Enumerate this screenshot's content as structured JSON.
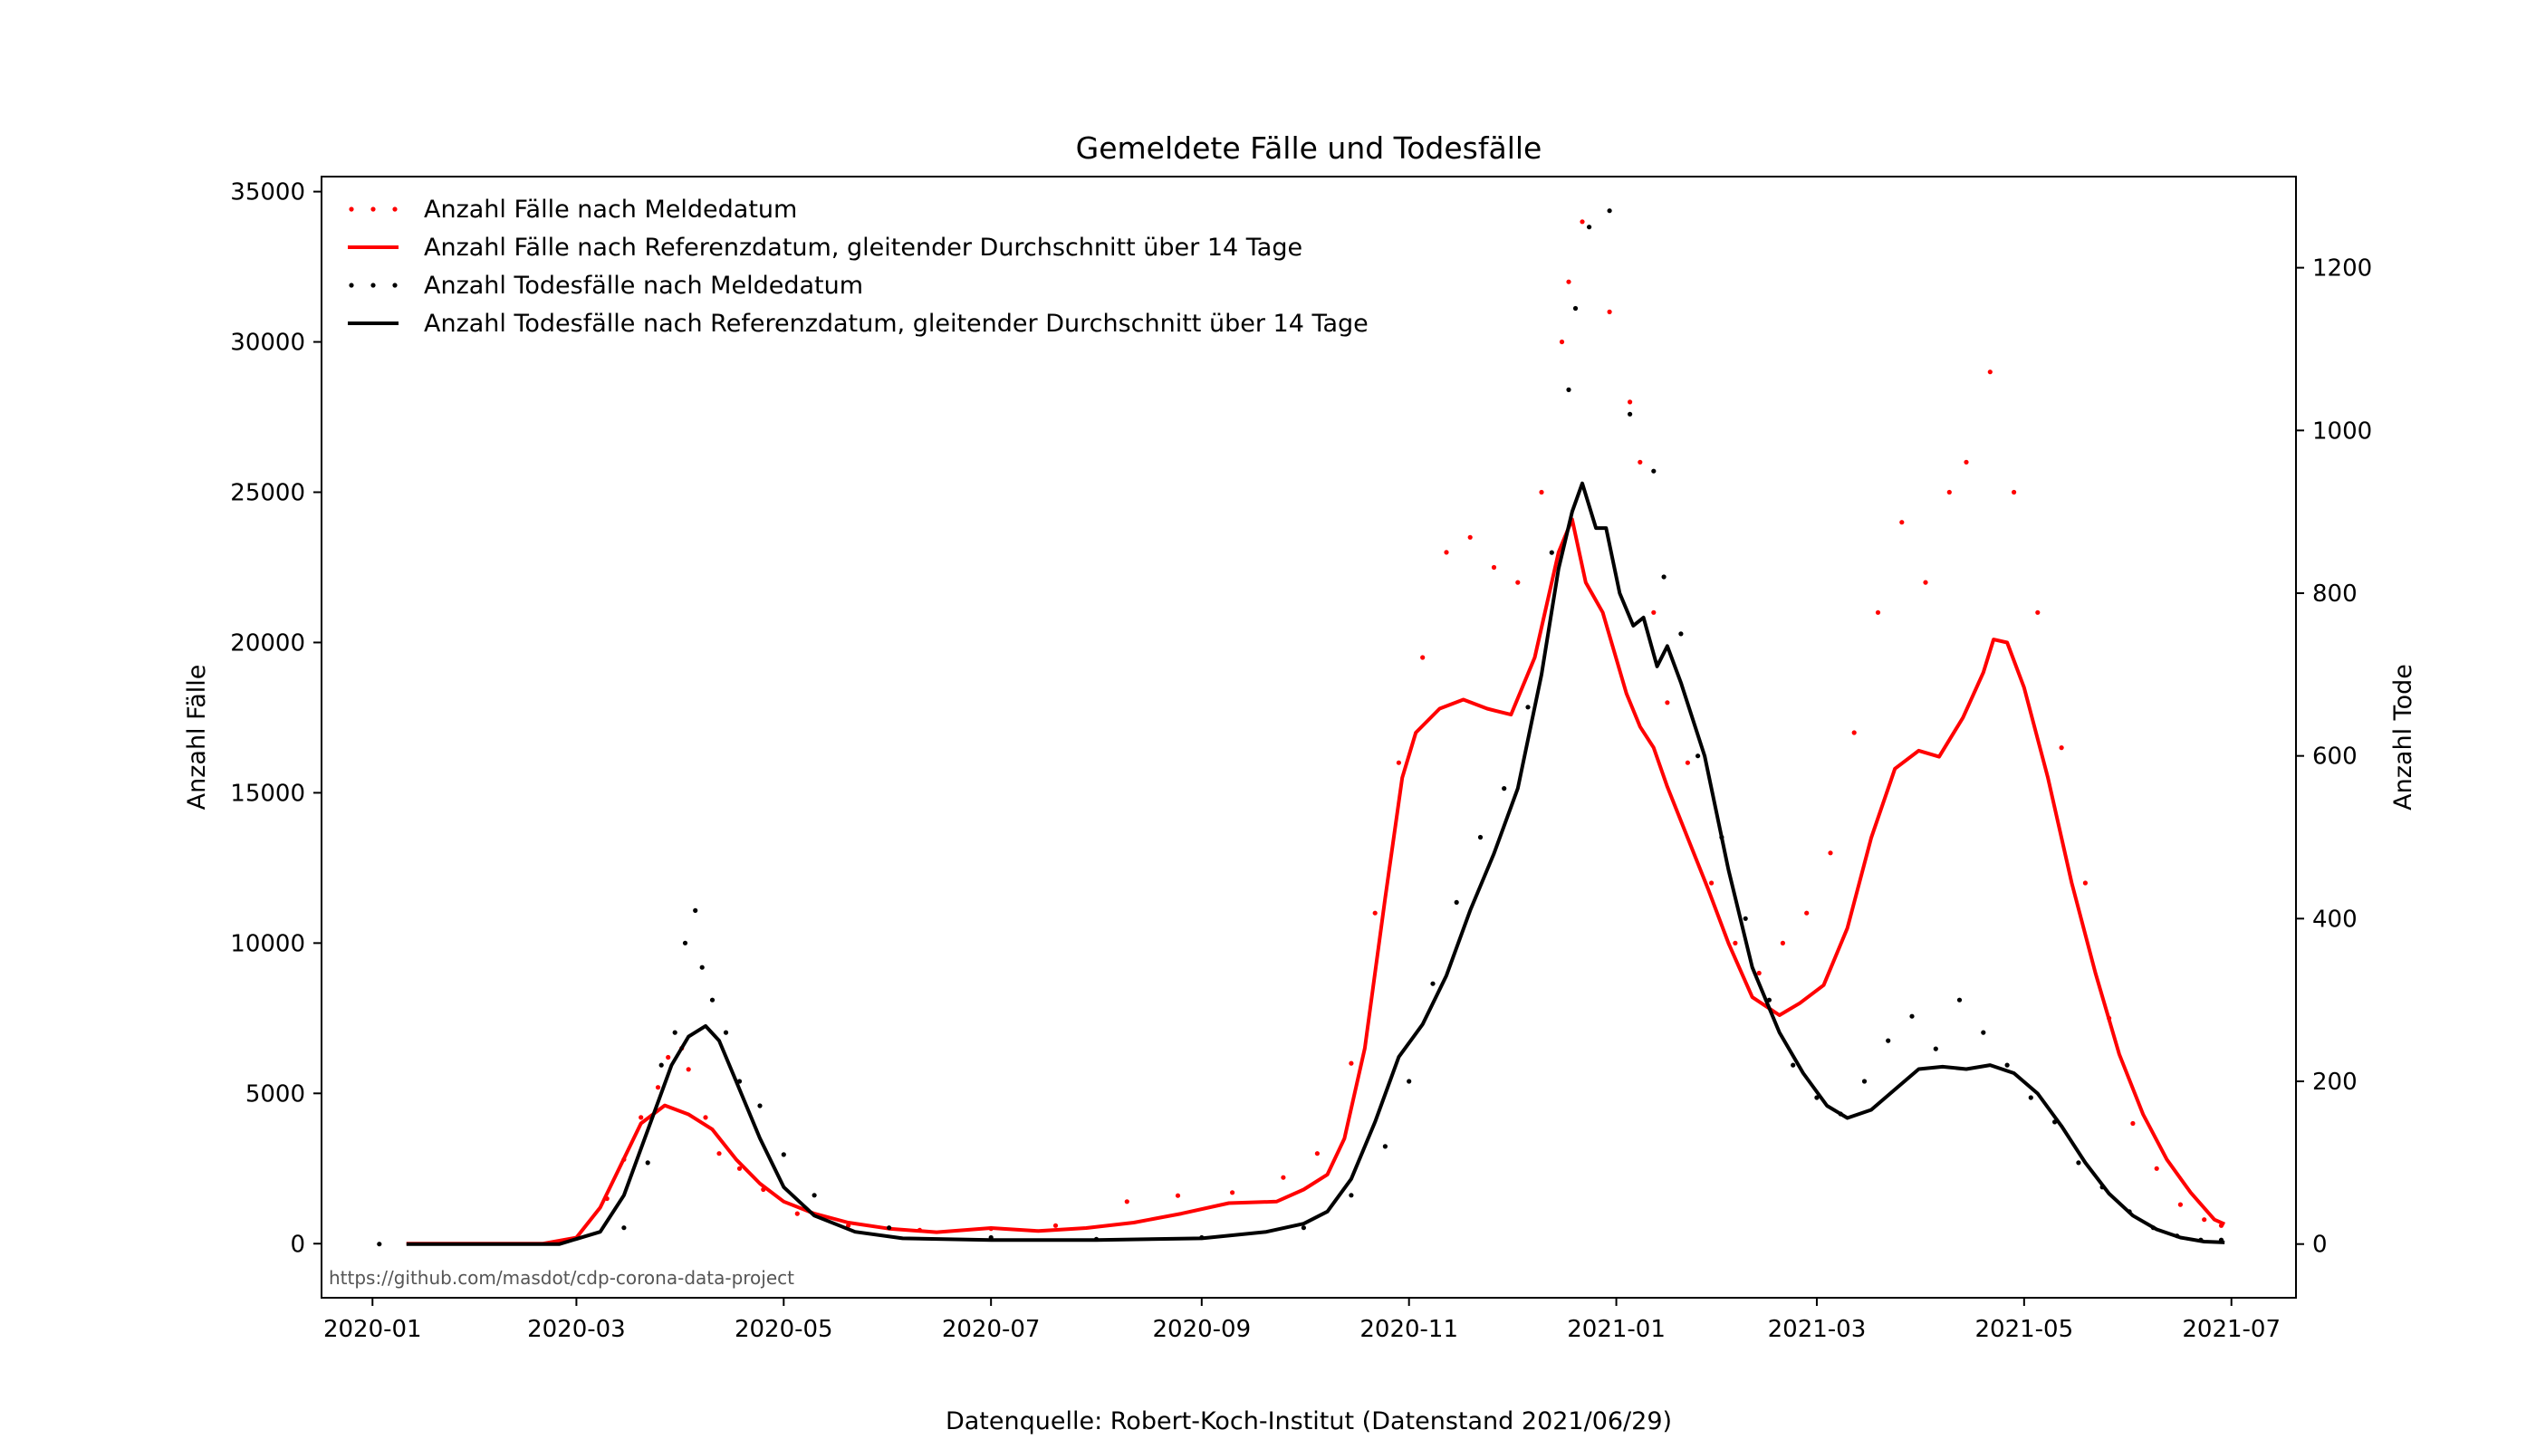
{
  "chart_data": {
    "type": "line",
    "title": "Gemeldete Fälle und Todesfälle",
    "ylabel_left": "Anzahl Fälle",
    "ylabel_right": "Anzahl Tode",
    "ylim_left": [
      -1800,
      35500
    ],
    "ylim_right": [
      -66,
      1312
    ],
    "xlim": [
      "2019-12-17",
      "2021-07-20"
    ],
    "x_ticks": [
      "2020-01",
      "2020-03",
      "2020-05",
      "2020-07",
      "2020-09",
      "2020-11",
      "2021-01",
      "2021-03",
      "2021-05",
      "2021-07"
    ],
    "y_ticks_left": [
      0,
      5000,
      10000,
      15000,
      20000,
      25000,
      30000,
      35000
    ],
    "y_ticks_right": [
      0,
      200,
      400,
      600,
      800,
      1000,
      1200
    ],
    "legend_position": "top-left",
    "grid": false,
    "source_url": "https://github.com/masdot/cdp-corona-data-project",
    "caption": "Datenquelle: Robert-Koch-Institut (Datenstand 2021/06/29)",
    "series": [
      {
        "name": "Anzahl Fälle nach Meldedatum",
        "axis": "left",
        "style": "dots",
        "color": "#ff0000",
        "points": [
          [
            "2020-03-10",
            1500
          ],
          [
            "2020-03-15",
            2800
          ],
          [
            "2020-03-20",
            4200
          ],
          [
            "2020-03-25",
            5200
          ],
          [
            "2020-03-28",
            6200
          ],
          [
            "2020-04-01",
            6500
          ],
          [
            "2020-04-03",
            5800
          ],
          [
            "2020-04-08",
            4200
          ],
          [
            "2020-04-12",
            3000
          ],
          [
            "2020-04-18",
            2500
          ],
          [
            "2020-04-25",
            1800
          ],
          [
            "2020-05-05",
            1000
          ],
          [
            "2020-05-20",
            600
          ],
          [
            "2020-06-10",
            450
          ],
          [
            "2020-07-01",
            500
          ],
          [
            "2020-07-20",
            600
          ],
          [
            "2020-08-10",
            1400
          ],
          [
            "2020-08-25",
            1600
          ],
          [
            "2020-09-10",
            1700
          ],
          [
            "2020-09-25",
            2200
          ],
          [
            "2020-10-05",
            3000
          ],
          [
            "2020-10-15",
            6000
          ],
          [
            "2020-10-22",
            11000
          ],
          [
            "2020-10-29",
            16000
          ],
          [
            "2020-11-05",
            19500
          ],
          [
            "2020-11-12",
            23000
          ],
          [
            "2020-11-19",
            23500
          ],
          [
            "2020-11-26",
            22500
          ],
          [
            "2020-12-03",
            22000
          ],
          [
            "2020-12-10",
            25000
          ],
          [
            "2020-12-16",
            30000
          ],
          [
            "2020-12-18",
            32000
          ],
          [
            "2020-12-22",
            34000
          ],
          [
            "2020-12-30",
            31000
          ],
          [
            "2021-01-05",
            28000
          ],
          [
            "2021-01-08",
            26000
          ],
          [
            "2021-01-12",
            21000
          ],
          [
            "2021-01-16",
            18000
          ],
          [
            "2021-01-22",
            16000
          ],
          [
            "2021-01-29",
            12000
          ],
          [
            "2021-02-05",
            10000
          ],
          [
            "2021-02-12",
            9000
          ],
          [
            "2021-02-19",
            10000
          ],
          [
            "2021-02-26",
            11000
          ],
          [
            "2021-03-05",
            13000
          ],
          [
            "2021-03-12",
            17000
          ],
          [
            "2021-03-19",
            21000
          ],
          [
            "2021-03-26",
            24000
          ],
          [
            "2021-04-02",
            22000
          ],
          [
            "2021-04-09",
            25000
          ],
          [
            "2021-04-14",
            26000
          ],
          [
            "2021-04-21",
            29000
          ],
          [
            "2021-04-28",
            25000
          ],
          [
            "2021-05-05",
            21000
          ],
          [
            "2021-05-12",
            16500
          ],
          [
            "2021-05-19",
            12000
          ],
          [
            "2021-05-26",
            7500
          ],
          [
            "2021-06-02",
            4000
          ],
          [
            "2021-06-09",
            2500
          ],
          [
            "2021-06-16",
            1300
          ],
          [
            "2021-06-23",
            800
          ],
          [
            "2021-06-28",
            600
          ]
        ]
      },
      {
        "name": "Anzahl Fälle nach Referenzdatum, gleitender Durchschnitt über 14 Tage",
        "axis": "left",
        "style": "line",
        "color": "#ff0000",
        "points": [
          [
            "2020-01-11",
            0
          ],
          [
            "2020-02-20",
            0
          ],
          [
            "2020-03-01",
            200
          ],
          [
            "2020-03-08",
            1200
          ],
          [
            "2020-03-14",
            2600
          ],
          [
            "2020-03-20",
            4000
          ],
          [
            "2020-03-27",
            4600
          ],
          [
            "2020-04-03",
            4300
          ],
          [
            "2020-04-10",
            3800
          ],
          [
            "2020-04-17",
            2800
          ],
          [
            "2020-04-24",
            2000
          ],
          [
            "2020-05-01",
            1400
          ],
          [
            "2020-05-10",
            1000
          ],
          [
            "2020-05-20",
            700
          ],
          [
            "2020-06-01",
            500
          ],
          [
            "2020-06-15",
            380
          ],
          [
            "2020-07-01",
            520
          ],
          [
            "2020-07-15",
            420
          ],
          [
            "2020-07-29",
            520
          ],
          [
            "2020-08-12",
            700
          ],
          [
            "2020-08-26",
            1000
          ],
          [
            "2020-09-09",
            1350
          ],
          [
            "2020-09-23",
            1400
          ],
          [
            "2020-10-01",
            1800
          ],
          [
            "2020-10-08",
            2300
          ],
          [
            "2020-10-13",
            3500
          ],
          [
            "2020-10-19",
            6500
          ],
          [
            "2020-10-25",
            11500
          ],
          [
            "2020-10-30",
            15500
          ],
          [
            "2020-11-03",
            17000
          ],
          [
            "2020-11-10",
            17800
          ],
          [
            "2020-11-17",
            18100
          ],
          [
            "2020-11-24",
            17800
          ],
          [
            "2020-12-01",
            17600
          ],
          [
            "2020-12-08",
            19500
          ],
          [
            "2020-12-15",
            23000
          ],
          [
            "2020-12-19",
            24100
          ],
          [
            "2020-12-23",
            22000
          ],
          [
            "2020-12-28",
            21000
          ],
          [
            "2021-01-04",
            18300
          ],
          [
            "2021-01-08",
            17200
          ],
          [
            "2021-01-12",
            16500
          ],
          [
            "2021-01-16",
            15200
          ],
          [
            "2021-01-22",
            13500
          ],
          [
            "2021-01-28",
            11800
          ],
          [
            "2021-02-03",
            10000
          ],
          [
            "2021-02-10",
            8200
          ],
          [
            "2021-02-18",
            7600
          ],
          [
            "2021-02-24",
            8000
          ],
          [
            "2021-03-03",
            8600
          ],
          [
            "2021-03-10",
            10500
          ],
          [
            "2021-03-17",
            13500
          ],
          [
            "2021-03-24",
            15800
          ],
          [
            "2021-03-31",
            16400
          ],
          [
            "2021-04-06",
            16200
          ],
          [
            "2021-04-13",
            17500
          ],
          [
            "2021-04-19",
            19000
          ],
          [
            "2021-04-22",
            20100
          ],
          [
            "2021-04-26",
            20000
          ],
          [
            "2021-05-01",
            18500
          ],
          [
            "2021-05-08",
            15500
          ],
          [
            "2021-05-15",
            12000
          ],
          [
            "2021-05-22",
            9000
          ],
          [
            "2021-05-29",
            6300
          ],
          [
            "2021-06-05",
            4300
          ],
          [
            "2021-06-12",
            2800
          ],
          [
            "2021-06-19",
            1700
          ],
          [
            "2021-06-26",
            800
          ],
          [
            "2021-06-29",
            650
          ]
        ]
      },
      {
        "name": "Anzahl Todesfälle nach Meldedatum",
        "axis": "right",
        "style": "dots",
        "color": "#000000",
        "points": [
          [
            "2020-01-03",
            0
          ],
          [
            "2020-03-15",
            20
          ],
          [
            "2020-03-22",
            100
          ],
          [
            "2020-03-26",
            220
          ],
          [
            "2020-03-30",
            260
          ],
          [
            "2020-04-02",
            370
          ],
          [
            "2020-04-05",
            410
          ],
          [
            "2020-04-07",
            340
          ],
          [
            "2020-04-10",
            300
          ],
          [
            "2020-04-14",
            260
          ],
          [
            "2020-04-18",
            200
          ],
          [
            "2020-04-24",
            170
          ],
          [
            "2020-05-01",
            110
          ],
          [
            "2020-05-10",
            60
          ],
          [
            "2020-06-01",
            20
          ],
          [
            "2020-07-01",
            8
          ],
          [
            "2020-08-01",
            6
          ],
          [
            "2020-09-01",
            8
          ],
          [
            "2020-10-01",
            20
          ],
          [
            "2020-10-15",
            60
          ],
          [
            "2020-10-25",
            120
          ],
          [
            "2020-11-01",
            200
          ],
          [
            "2020-11-08",
            320
          ],
          [
            "2020-11-15",
            420
          ],
          [
            "2020-11-22",
            500
          ],
          [
            "2020-11-29",
            560
          ],
          [
            "2020-12-06",
            660
          ],
          [
            "2020-12-13",
            850
          ],
          [
            "2020-12-18",
            1050
          ],
          [
            "2020-12-20",
            1150
          ],
          [
            "2020-12-24",
            1250
          ],
          [
            "2020-12-30",
            1270
          ],
          [
            "2021-01-05",
            1020
          ],
          [
            "2021-01-12",
            950
          ],
          [
            "2021-01-15",
            820
          ],
          [
            "2021-01-20",
            750
          ],
          [
            "2021-01-25",
            600
          ],
          [
            "2021-02-01",
            500
          ],
          [
            "2021-02-08",
            400
          ],
          [
            "2021-02-15",
            300
          ],
          [
            "2021-02-22",
            220
          ],
          [
            "2021-03-01",
            180
          ],
          [
            "2021-03-08",
            160
          ],
          [
            "2021-03-15",
            200
          ],
          [
            "2021-03-22",
            250
          ],
          [
            "2021-03-29",
            280
          ],
          [
            "2021-04-05",
            240
          ],
          [
            "2021-04-12",
            300
          ],
          [
            "2021-04-19",
            260
          ],
          [
            "2021-04-26",
            220
          ],
          [
            "2021-05-03",
            180
          ],
          [
            "2021-05-10",
            150
          ],
          [
            "2021-05-17",
            100
          ],
          [
            "2021-05-24",
            70
          ],
          [
            "2021-06-01",
            40
          ],
          [
            "2021-06-08",
            20
          ],
          [
            "2021-06-15",
            10
          ],
          [
            "2021-06-22",
            5
          ],
          [
            "2021-06-28",
            5
          ]
        ]
      },
      {
        "name": "Anzahl Todesfälle nach Referenzdatum, gleitender Durchschnitt über 14 Tage",
        "axis": "right",
        "style": "line",
        "color": "#000000",
        "points": [
          [
            "2020-01-11",
            0
          ],
          [
            "2020-02-25",
            0
          ],
          [
            "2020-03-08",
            15
          ],
          [
            "2020-03-15",
            60
          ],
          [
            "2020-03-22",
            140
          ],
          [
            "2020-03-29",
            220
          ],
          [
            "2020-04-03",
            255
          ],
          [
            "2020-04-08",
            268
          ],
          [
            "2020-04-12",
            250
          ],
          [
            "2020-04-17",
            200
          ],
          [
            "2020-04-24",
            130
          ],
          [
            "2020-05-01",
            70
          ],
          [
            "2020-05-10",
            35
          ],
          [
            "2020-05-22",
            15
          ],
          [
            "2020-06-05",
            7
          ],
          [
            "2020-07-01",
            5
          ],
          [
            "2020-08-01",
            5
          ],
          [
            "2020-09-01",
            7
          ],
          [
            "2020-09-20",
            15
          ],
          [
            "2020-10-01",
            25
          ],
          [
            "2020-10-08",
            40
          ],
          [
            "2020-10-15",
            80
          ],
          [
            "2020-10-22",
            150
          ],
          [
            "2020-10-29",
            230
          ],
          [
            "2020-11-05",
            270
          ],
          [
            "2020-11-12",
            330
          ],
          [
            "2020-11-19",
            410
          ],
          [
            "2020-11-26",
            480
          ],
          [
            "2020-12-03",
            560
          ],
          [
            "2020-12-10",
            700
          ],
          [
            "2020-12-15",
            830
          ],
          [
            "2020-12-19",
            900
          ],
          [
            "2020-12-22",
            935
          ],
          [
            "2020-12-26",
            880
          ],
          [
            "2020-12-29",
            880
          ],
          [
            "2021-01-02",
            800
          ],
          [
            "2021-01-06",
            760
          ],
          [
            "2021-01-09",
            770
          ],
          [
            "2021-01-13",
            710
          ],
          [
            "2021-01-16",
            735
          ],
          [
            "2021-01-20",
            690
          ],
          [
            "2021-01-27",
            600
          ],
          [
            "2021-02-03",
            460
          ],
          [
            "2021-02-10",
            340
          ],
          [
            "2021-02-18",
            260
          ],
          [
            "2021-02-25",
            210
          ],
          [
            "2021-03-04",
            170
          ],
          [
            "2021-03-10",
            155
          ],
          [
            "2021-03-17",
            165
          ],
          [
            "2021-03-24",
            190
          ],
          [
            "2021-03-31",
            215
          ],
          [
            "2021-04-07",
            218
          ],
          [
            "2021-04-14",
            215
          ],
          [
            "2021-04-21",
            220
          ],
          [
            "2021-04-28",
            210
          ],
          [
            "2021-05-05",
            185
          ],
          [
            "2021-05-12",
            145
          ],
          [
            "2021-05-19",
            100
          ],
          [
            "2021-05-26",
            62
          ],
          [
            "2021-06-02",
            35
          ],
          [
            "2021-06-09",
            18
          ],
          [
            "2021-06-16",
            8
          ],
          [
            "2021-06-23",
            3
          ],
          [
            "2021-06-29",
            2
          ]
        ]
      }
    ]
  }
}
